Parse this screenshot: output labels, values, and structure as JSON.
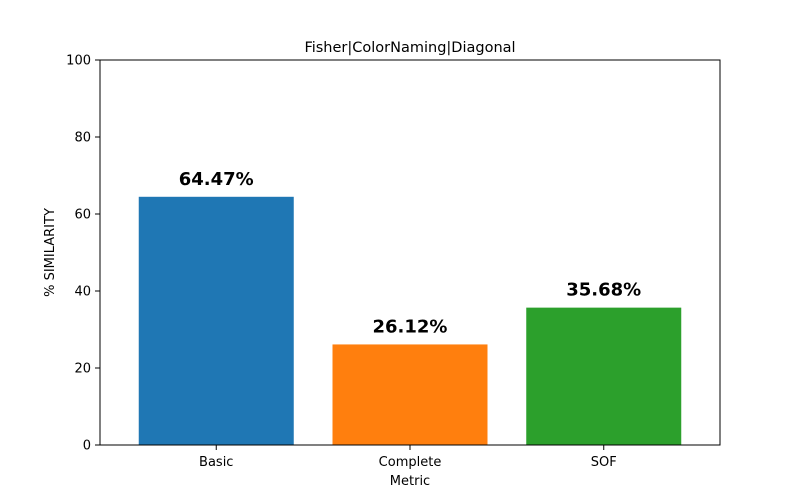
{
  "chart_data": {
    "type": "bar",
    "title": "Fisher|ColorNaming|Diagonal",
    "xlabel": "Metric",
    "ylabel": "% SIMILARITY",
    "categories": [
      "Basic",
      "Complete",
      "SOF"
    ],
    "values": [
      64.47,
      26.12,
      35.68
    ],
    "data_labels": [
      "64.47%",
      "26.12%",
      "35.68%"
    ],
    "colors": [
      "#1f77b4",
      "#ff7f0e",
      "#2ca02c"
    ],
    "ylim": [
      0,
      100
    ],
    "yticks": [
      0,
      20,
      40,
      60,
      80,
      100
    ],
    "ytick_labels": [
      "0",
      "20",
      "40",
      "60",
      "80",
      "100"
    ],
    "grid": false,
    "legend": "none"
  }
}
